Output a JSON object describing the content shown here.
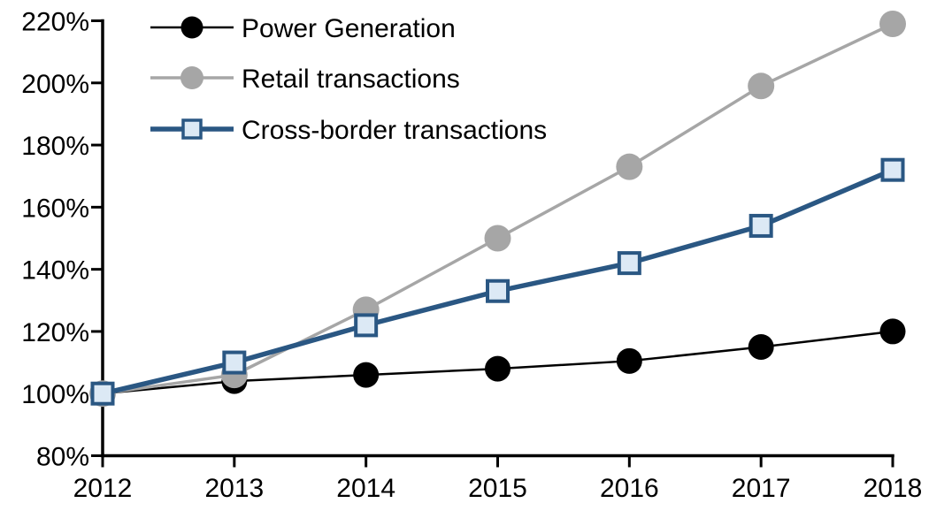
{
  "chart_data": {
    "type": "line",
    "title": "",
    "xlabel": "",
    "ylabel": "",
    "x": [
      2012,
      2013,
      2014,
      2015,
      2016,
      2017,
      2018
    ],
    "x_tick_labels": [
      "2012",
      "2013",
      "2014",
      "2015",
      "2016",
      "2017",
      "2018"
    ],
    "y_ticks": [
      80,
      100,
      120,
      140,
      160,
      180,
      200,
      220
    ],
    "y_tick_labels": [
      "80%",
      "100%",
      "120%",
      "140%",
      "160%",
      "180%",
      "200%",
      "220%"
    ],
    "ylim": [
      80,
      220
    ],
    "grid": false,
    "legend_position": "top-left",
    "axis_color": "#000000",
    "series": [
      {
        "name": "Power Generation",
        "marker": "circle",
        "color": "#000000",
        "marker_fill": "#000000",
        "values": [
          100,
          104,
          106,
          108,
          110.5,
          115,
          120
        ]
      },
      {
        "name": "Retail transactions",
        "marker": "circle",
        "color": "#A6A6A6",
        "marker_fill": "#A6A6A6",
        "values": [
          100,
          106,
          127,
          150,
          173,
          199,
          219
        ]
      },
      {
        "name": "Cross-border transactions",
        "marker": "square",
        "color": "#2A5783",
        "marker_fill": "#DCE9F5",
        "values": [
          100,
          110,
          122,
          133,
          142,
          154,
          172
        ]
      }
    ]
  }
}
